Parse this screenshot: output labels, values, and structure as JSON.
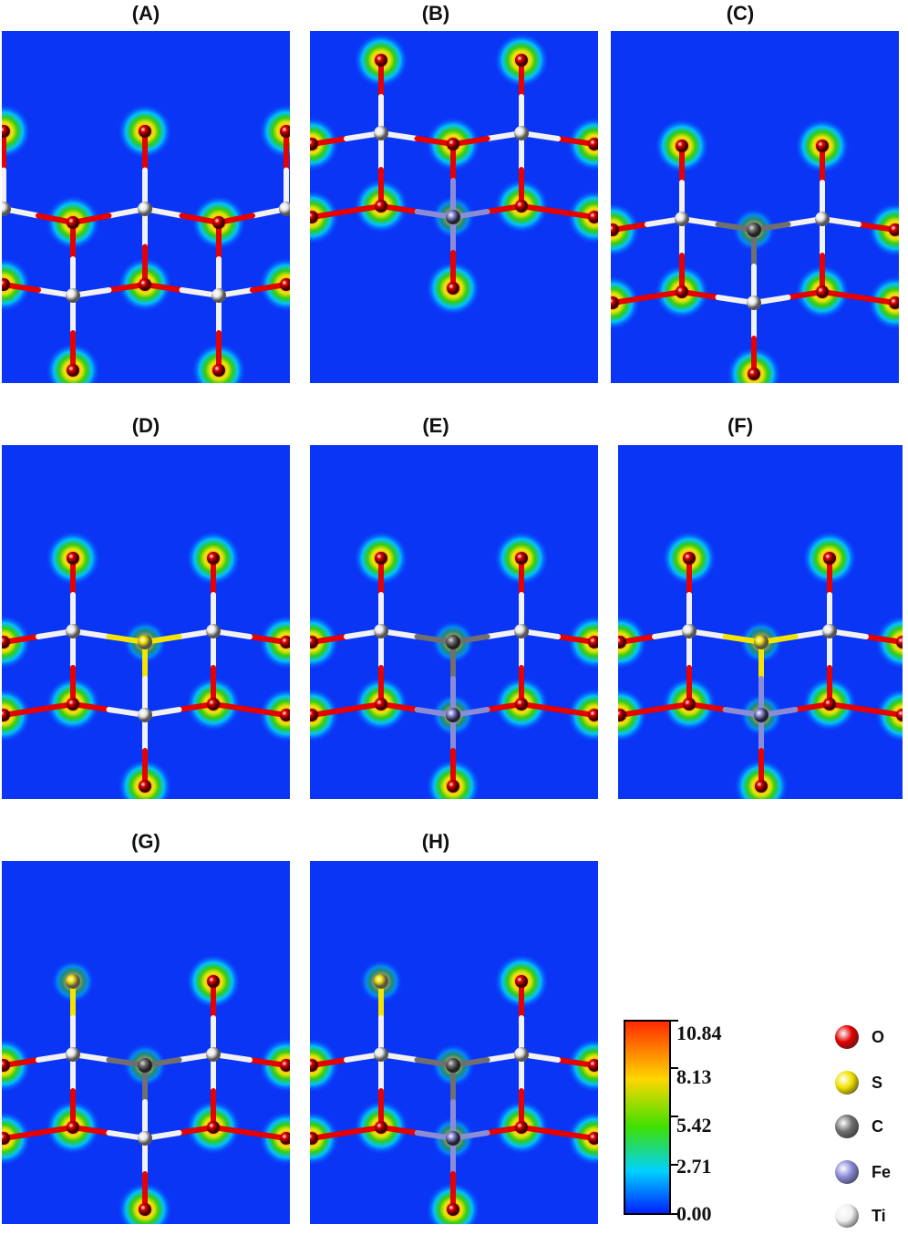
{
  "panels": [
    {
      "id": "A",
      "label": "(A)"
    },
    {
      "id": "B",
      "label": "(B)"
    },
    {
      "id": "C",
      "label": "(C)"
    },
    {
      "id": "D",
      "label": "(D)"
    },
    {
      "id": "E",
      "label": "(E)"
    },
    {
      "id": "F",
      "label": "(F)"
    },
    {
      "id": "G",
      "label": "(G)"
    },
    {
      "id": "H",
      "label": "(H)"
    }
  ],
  "colorbar": {
    "ticks": [
      "10.84",
      "8.13",
      "5.42",
      "2.71",
      "0.00"
    ],
    "colors": [
      "#ff2a00",
      "#ffd700",
      "#3ee000",
      "#00d2ff",
      "#0020ff"
    ]
  },
  "legend": [
    {
      "symbol": "O",
      "color": "#e30000"
    },
    {
      "symbol": "S",
      "color": "#f2e200"
    },
    {
      "symbol": "C",
      "color": "#707070"
    },
    {
      "symbol": "Fe",
      "color": "#8a8ad8"
    },
    {
      "symbol": "Ti",
      "color": "#f0f0f0"
    }
  ]
}
